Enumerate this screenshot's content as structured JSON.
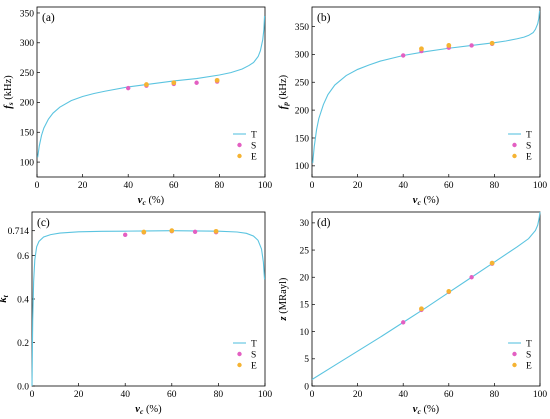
{
  "figure": {
    "colors": {
      "theory": "#5bc4e0",
      "simulation": "#e35fc2",
      "experiment": "#f5b332"
    }
  },
  "chart_data": [
    {
      "id": "a",
      "panel_label": "(a)",
      "type": "line",
      "xlabel": {
        "main": "v",
        "sub": "c",
        "unit": " (%)"
      },
      "ylabel": {
        "main": "f",
        "sub": "s",
        "unit": " (kHz)"
      },
      "xlim": [
        0,
        100
      ],
      "ylim": [
        75,
        360
      ],
      "xticks": [
        0,
        20,
        40,
        60,
        80,
        100
      ],
      "yticks": [
        100,
        150,
        200,
        250,
        300,
        350
      ],
      "ytick_labels": [
        "100",
        "150",
        "200",
        "250",
        "300",
        "350"
      ],
      "legend": [
        "T",
        "S",
        "E"
      ],
      "legend_position": "bottom-right",
      "series": [
        {
          "name": "T",
          "style": "line",
          "color": "#5bc4e0",
          "x": [
            0.3,
            1,
            2,
            3,
            5,
            7,
            10,
            15,
            20,
            25,
            30,
            40,
            50,
            60,
            70,
            80,
            85,
            90,
            93,
            95,
            97,
            98,
            99,
            99.5,
            99.8
          ],
          "y": [
            108,
            127,
            145,
            157,
            172,
            182,
            192,
            203,
            210,
            215,
            219,
            226,
            231,
            236,
            240,
            246,
            250,
            256,
            262,
            267,
            277,
            287,
            305,
            322,
            345
          ]
        },
        {
          "name": "S",
          "style": "marker",
          "color": "#e35fc2",
          "x": [
            40,
            48,
            60,
            70,
            79
          ],
          "y": [
            224,
            228,
            231,
            233,
            235
          ]
        },
        {
          "name": "E",
          "style": "marker",
          "color": "#f5b332",
          "x": [
            48,
            60,
            79
          ],
          "y": [
            230,
            233,
            237
          ]
        }
      ]
    },
    {
      "id": "b",
      "panel_label": "(b)",
      "type": "line",
      "xlabel": {
        "main": "v",
        "sub": "c",
        "unit": " (%)"
      },
      "ylabel": {
        "main": "f",
        "sub": "p",
        "unit": " (kHz)"
      },
      "xlim": [
        0,
        100
      ],
      "ylim": [
        80,
        385
      ],
      "xticks": [
        0,
        20,
        40,
        60,
        80,
        100
      ],
      "yticks": [
        100,
        150,
        200,
        250,
        300,
        350
      ],
      "ytick_labels": [
        "100",
        "150",
        "200",
        "250",
        "300",
        "350"
      ],
      "legend": [
        "T",
        "S",
        "E"
      ],
      "legend_position": "bottom-right",
      "series": [
        {
          "name": "T",
          "style": "line",
          "color": "#5bc4e0",
          "x": [
            0.3,
            1,
            2,
            3,
            5,
            7,
            10,
            15,
            20,
            25,
            30,
            40,
            50,
            60,
            70,
            80,
            85,
            90,
            93,
            95,
            97,
            98,
            99,
            99.5,
            99.8
          ],
          "y": [
            105,
            135,
            165,
            185,
            210,
            228,
            245,
            262,
            273,
            281,
            288,
            298,
            305,
            311,
            316,
            321,
            324,
            328,
            331,
            334,
            339,
            345,
            355,
            365,
            378
          ]
        },
        {
          "name": "S",
          "style": "marker",
          "color": "#e35fc2",
          "x": [
            40,
            48,
            60,
            70,
            79
          ],
          "y": [
            298,
            306,
            312,
            316,
            319
          ]
        },
        {
          "name": "E",
          "style": "marker",
          "color": "#f5b332",
          "x": [
            48,
            60,
            79
          ],
          "y": [
            310,
            316,
            320
          ]
        }
      ]
    },
    {
      "id": "c",
      "panel_label": "(c)",
      "type": "line",
      "xlabel": {
        "main": "v",
        "sub": "c",
        "unit": " (%)"
      },
      "ylabel": {
        "main": "k",
        "sub": "t",
        "unit": ""
      },
      "xlim": [
        0,
        100
      ],
      "ylim": [
        0,
        0.8
      ],
      "xticks": [
        0,
        20,
        40,
        60,
        80,
        100
      ],
      "yticks": [
        0.0,
        0.2,
        0.4,
        0.6,
        0.714
      ],
      "ytick_labels": [
        "0.0",
        "0.2",
        "0.4",
        "0.6",
        "0.714"
      ],
      "legend": [
        "T",
        "S",
        "E"
      ],
      "legend_position": "bottom-right",
      "series": [
        {
          "name": "T",
          "style": "line",
          "color": "#5bc4e0",
          "x": [
            0,
            0.3,
            0.7,
            1.2,
            2,
            3,
            5,
            8,
            12,
            20,
            30,
            40,
            50,
            60,
            70,
            80,
            88,
            92,
            95,
            97,
            98.5,
            99.3,
            99.8
          ],
          "y": [
            0,
            0.3,
            0.48,
            0.58,
            0.64,
            0.665,
            0.685,
            0.696,
            0.703,
            0.709,
            0.711,
            0.712,
            0.713,
            0.714,
            0.713,
            0.712,
            0.708,
            0.702,
            0.69,
            0.67,
            0.63,
            0.57,
            0.49
          ]
        },
        {
          "name": "S",
          "style": "marker",
          "color": "#e35fc2",
          "x": [
            40,
            48,
            60,
            70,
            79
          ],
          "y": [
            0.695,
            0.706,
            0.712,
            0.709,
            0.707
          ]
        },
        {
          "name": "E",
          "style": "marker",
          "color": "#f5b332",
          "x": [
            48,
            60,
            79
          ],
          "y": [
            0.708,
            0.714,
            0.711
          ]
        }
      ]
    },
    {
      "id": "d",
      "panel_label": "(d)",
      "type": "line",
      "xlabel": {
        "main": "v",
        "sub": "c",
        "unit": " (%)"
      },
      "ylabel": {
        "main": "z",
        "sub": "",
        "unit": " (MRayl)"
      },
      "xlim": [
        0,
        100
      ],
      "ylim": [
        0,
        32
      ],
      "xticks": [
        0,
        20,
        40,
        60,
        80,
        100
      ],
      "yticks": [
        0,
        5,
        10,
        15,
        20,
        25,
        30
      ],
      "ytick_labels": [
        "0",
        "5",
        "10",
        "15",
        "20",
        "25",
        "30"
      ],
      "legend": [
        "T",
        "S",
        "E"
      ],
      "legend_position": "bottom-right",
      "series": [
        {
          "name": "T",
          "style": "line",
          "color": "#5bc4e0",
          "x": [
            0,
            10,
            20,
            30,
            40,
            50,
            60,
            70,
            80,
            90,
            95,
            98,
            99,
            99.6,
            100
          ],
          "y": [
            1.2,
            3.8,
            6.4,
            9.0,
            11.7,
            14.4,
            17.2,
            20.0,
            22.8,
            25.6,
            27.1,
            28.6,
            29.6,
            30.8,
            32
          ]
        },
        {
          "name": "S",
          "style": "marker",
          "color": "#e35fc2",
          "x": [
            40,
            48,
            60,
            70,
            79
          ],
          "y": [
            11.7,
            14.0,
            17.3,
            20.0,
            22.5
          ]
        },
        {
          "name": "E",
          "style": "marker",
          "color": "#f5b332",
          "x": [
            48,
            60,
            79
          ],
          "y": [
            14.2,
            17.4,
            22.6
          ]
        }
      ]
    }
  ]
}
